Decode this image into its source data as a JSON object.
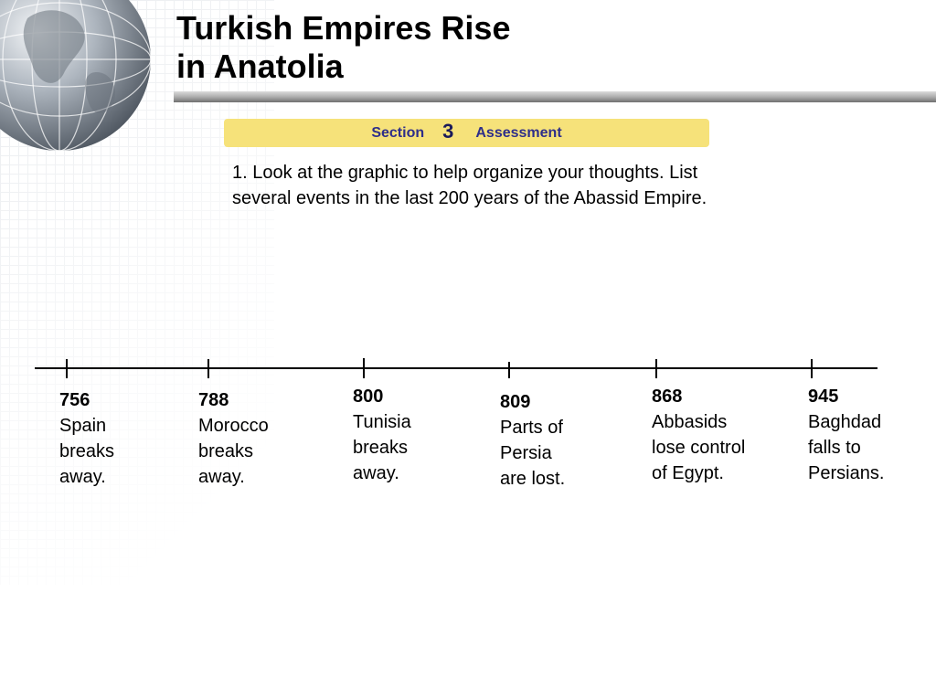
{
  "slide": {
    "title_line1": "Turkish Empires Rise",
    "title_line2": "in Anatolia"
  },
  "section_bar": {
    "section_label": "Section",
    "section_number": "3",
    "assessment_label": "Assessment",
    "color": "#f6e27a"
  },
  "question": {
    "text": "1. Look at the graphic to help organize your thoughts. List several events in the last 200 years of the Abassid Empire."
  },
  "timeline": {
    "events": [
      {
        "year": "756",
        "text": "Spain\nbreaks\naway."
      },
      {
        "year": "788",
        "text": "Morocco\nbreaks\naway."
      },
      {
        "year": "800",
        "text": "Tunisia\nbreaks\naway."
      },
      {
        "year": "809",
        "text": "Parts of\nPersia\nare lost."
      },
      {
        "year": "868",
        "text": "Abbasids\nlose control\nof Egypt."
      },
      {
        "year": "945",
        "text": "Baghdad\nfalls to\nPersians."
      }
    ]
  }
}
